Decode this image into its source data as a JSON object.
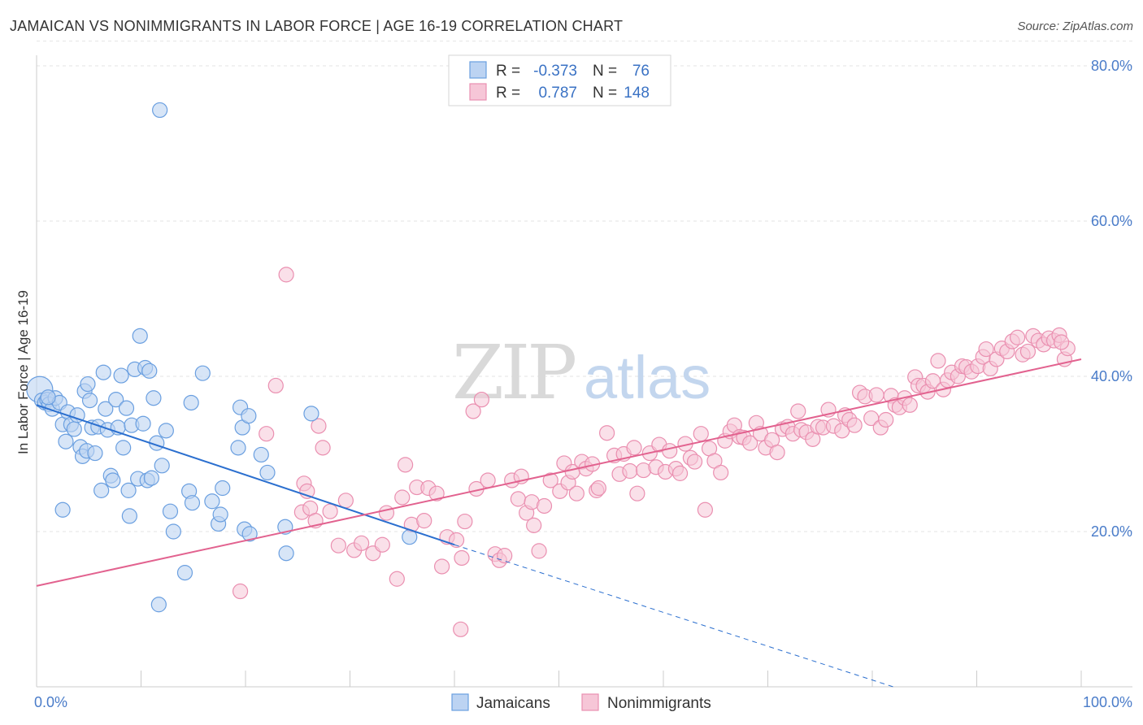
{
  "title": "JAMAICAN VS NONIMMIGRANTS IN LABOR FORCE | AGE 16-19 CORRELATION CHART",
  "source": "Source: ZipAtlas.com",
  "watermark": {
    "part1": "ZIP",
    "part2": "atlas"
  },
  "colors": {
    "blue": "#6a9fe0",
    "blue_fill": "#bcd3f2",
    "blue_line": "#2b6fcf",
    "pink": "#ea8fb0",
    "pink_fill": "#f6c6d7",
    "pink_line": "#e2628f",
    "tick_blue": "#4a7cc9"
  },
  "legend": {
    "r_label": "R =",
    "n_label": "N =",
    "rows": [
      {
        "r": "-0.373",
        "n": "76"
      },
      {
        "r": "0.787",
        "n": "148"
      }
    ]
  },
  "bottom_legend": [
    "Jamaicans",
    "Nonimmigrants"
  ],
  "chart_data": {
    "type": "scatter",
    "title": "JAMAICAN VS NONIMMIGRANTS IN LABOR FORCE | AGE 16-19 CORRELATION CHART",
    "xlabel": "",
    "ylabel": "In Labor Force | Age 16-19",
    "xlim": [
      0,
      100
    ],
    "ylim": [
      0,
      85
    ],
    "x_tick_labels": [
      "0.0%",
      "100.0%"
    ],
    "y_ticks": [
      20,
      40,
      60,
      80
    ],
    "y_tick_labels": [
      "20.0%",
      "40.0%",
      "60.0%",
      "80.0%"
    ],
    "grid": true,
    "legend_position": "top-center",
    "series": [
      {
        "name": "Jamaicans",
        "r": -0.373,
        "n": 76,
        "trend": {
          "x0": 0,
          "y0": 36.3,
          "x1": 40,
          "y1": 18.3,
          "dashed_to_x": 82
        },
        "points": [
          [
            0.3,
            38.3
          ],
          [
            0.5,
            36.9
          ],
          [
            0.8,
            36.6
          ],
          [
            1.0,
            37.0
          ],
          [
            1.2,
            36.4
          ],
          [
            1.5,
            35.8
          ],
          [
            1.8,
            37.2
          ],
          [
            2.2,
            36.6
          ],
          [
            2.5,
            33.8
          ],
          [
            2.8,
            31.6
          ],
          [
            3.0,
            35.4
          ],
          [
            3.3,
            33.8
          ],
          [
            3.6,
            33.2
          ],
          [
            3.9,
            35.0
          ],
          [
            4.2,
            30.9
          ],
          [
            4.4,
            29.7
          ],
          [
            4.6,
            38.1
          ],
          [
            4.8,
            30.4
          ],
          [
            5.1,
            36.9
          ],
          [
            5.3,
            33.4
          ],
          [
            5.6,
            30.1
          ],
          [
            5.9,
            33.5
          ],
          [
            6.2,
            25.3
          ],
          [
            6.4,
            40.5
          ],
          [
            6.6,
            35.8
          ],
          [
            6.8,
            33.1
          ],
          [
            7.1,
            27.2
          ],
          [
            7.3,
            26.6
          ],
          [
            7.6,
            37.0
          ],
          [
            7.8,
            33.4
          ],
          [
            8.1,
            40.1
          ],
          [
            8.3,
            30.8
          ],
          [
            8.6,
            35.9
          ],
          [
            8.8,
            25.3
          ],
          [
            8.9,
            22.0
          ],
          [
            9.1,
            33.7
          ],
          [
            9.4,
            40.9
          ],
          [
            9.7,
            26.8
          ],
          [
            9.9,
            45.2
          ],
          [
            10.2,
            33.9
          ],
          [
            10.4,
            41.1
          ],
          [
            10.6,
            26.6
          ],
          [
            10.8,
            40.7
          ],
          [
            11.0,
            26.9
          ],
          [
            11.2,
            37.2
          ],
          [
            11.5,
            31.4
          ],
          [
            11.7,
            10.6
          ],
          [
            12.0,
            28.5
          ],
          [
            12.4,
            33.0
          ],
          [
            12.8,
            22.6
          ],
          [
            13.1,
            20.0
          ],
          [
            14.2,
            14.7
          ],
          [
            14.6,
            25.2
          ],
          [
            14.8,
            36.6
          ],
          [
            14.9,
            23.7
          ],
          [
            15.9,
            40.4
          ],
          [
            16.8,
            23.9
          ],
          [
            17.4,
            21.0
          ],
          [
            17.6,
            22.2
          ],
          [
            17.8,
            25.6
          ],
          [
            19.3,
            30.8
          ],
          [
            19.5,
            36.0
          ],
          [
            19.7,
            33.4
          ],
          [
            19.9,
            20.3
          ],
          [
            20.3,
            34.9
          ],
          [
            20.4,
            19.7
          ],
          [
            21.5,
            29.9
          ],
          [
            22.1,
            27.6
          ],
          [
            23.8,
            20.6
          ],
          [
            23.9,
            17.2
          ],
          [
            26.3,
            35.2
          ],
          [
            35.7,
            19.3
          ],
          [
            11.8,
            74.3
          ],
          [
            4.9,
            39.0
          ],
          [
            2.5,
            22.8
          ],
          [
            1.1,
            37.3
          ]
        ]
      },
      {
        "name": "Nonimmigrants",
        "r": 0.787,
        "n": 148,
        "trend": {
          "x0": 0,
          "y0": 13.0,
          "x1": 100,
          "y1": 42.2
        },
        "points": [
          [
            19.5,
            12.3
          ],
          [
            22.0,
            32.6
          ],
          [
            22.9,
            38.8
          ],
          [
            23.9,
            53.1
          ],
          [
            25.4,
            22.5
          ],
          [
            25.6,
            26.2
          ],
          [
            25.9,
            25.2
          ],
          [
            26.2,
            23.0
          ],
          [
            26.7,
            21.4
          ],
          [
            27.0,
            33.6
          ],
          [
            27.4,
            30.8
          ],
          [
            28.1,
            22.6
          ],
          [
            28.9,
            18.2
          ],
          [
            29.6,
            24.0
          ],
          [
            30.4,
            17.6
          ],
          [
            31.1,
            18.5
          ],
          [
            32.2,
            17.2
          ],
          [
            33.1,
            18.3
          ],
          [
            33.5,
            22.4
          ],
          [
            34.5,
            13.9
          ],
          [
            35.0,
            24.4
          ],
          [
            35.3,
            28.6
          ],
          [
            35.9,
            20.9
          ],
          [
            36.4,
            25.7
          ],
          [
            37.1,
            21.4
          ],
          [
            37.5,
            25.6
          ],
          [
            38.3,
            24.9
          ],
          [
            38.8,
            15.5
          ],
          [
            39.3,
            19.3
          ],
          [
            40.2,
            18.9
          ],
          [
            40.7,
            16.6
          ],
          [
            41.0,
            21.3
          ],
          [
            40.6,
            7.4
          ],
          [
            41.8,
            35.5
          ],
          [
            42.1,
            25.5
          ],
          [
            42.6,
            37.0
          ],
          [
            43.2,
            26.6
          ],
          [
            43.9,
            17.1
          ],
          [
            44.3,
            16.3
          ],
          [
            44.8,
            16.9
          ],
          [
            45.5,
            26.6
          ],
          [
            46.1,
            24.2
          ],
          [
            46.4,
            27.1
          ],
          [
            46.9,
            22.4
          ],
          [
            47.4,
            23.8
          ],
          [
            47.6,
            20.8
          ],
          [
            48.1,
            17.5
          ],
          [
            48.6,
            23.3
          ],
          [
            49.2,
            26.6
          ],
          [
            50.1,
            25.2
          ],
          [
            50.5,
            28.8
          ],
          [
            50.9,
            26.3
          ],
          [
            51.3,
            27.7
          ],
          [
            51.7,
            24.9
          ],
          [
            52.2,
            29.0
          ],
          [
            52.6,
            28.1
          ],
          [
            53.2,
            28.7
          ],
          [
            53.6,
            25.3
          ],
          [
            53.8,
            25.6
          ],
          [
            54.6,
            32.7
          ],
          [
            55.3,
            29.8
          ],
          [
            55.8,
            27.4
          ],
          [
            56.2,
            30.0
          ],
          [
            56.8,
            27.8
          ],
          [
            57.2,
            30.8
          ],
          [
            57.5,
            24.9
          ],
          [
            58.1,
            27.9
          ],
          [
            58.7,
            30.1
          ],
          [
            59.3,
            28.3
          ],
          [
            59.6,
            31.2
          ],
          [
            60.2,
            27.7
          ],
          [
            60.6,
            30.4
          ],
          [
            61.2,
            28.1
          ],
          [
            61.6,
            27.5
          ],
          [
            62.1,
            31.3
          ],
          [
            62.6,
            29.5
          ],
          [
            63.0,
            29.0
          ],
          [
            63.6,
            32.6
          ],
          [
            64.0,
            22.8
          ],
          [
            64.4,
            30.7
          ],
          [
            64.9,
            29.1
          ],
          [
            65.5,
            27.6
          ],
          [
            65.9,
            31.7
          ],
          [
            66.4,
            32.9
          ],
          [
            66.8,
            33.7
          ],
          [
            67.3,
            32.2
          ],
          [
            67.7,
            32.1
          ],
          [
            68.3,
            31.4
          ],
          [
            68.9,
            34.0
          ],
          [
            69.3,
            32.6
          ],
          [
            69.8,
            30.8
          ],
          [
            70.4,
            31.8
          ],
          [
            70.9,
            30.2
          ],
          [
            71.4,
            33.2
          ],
          [
            71.9,
            33.5
          ],
          [
            72.4,
            32.6
          ],
          [
            72.9,
            35.5
          ],
          [
            73.2,
            33.1
          ],
          [
            73.7,
            32.8
          ],
          [
            74.3,
            31.9
          ],
          [
            74.8,
            33.5
          ],
          [
            75.3,
            33.4
          ],
          [
            75.8,
            35.7
          ],
          [
            76.3,
            33.6
          ],
          [
            77.1,
            33.0
          ],
          [
            77.4,
            35.0
          ],
          [
            77.8,
            34.4
          ],
          [
            78.3,
            33.7
          ],
          [
            78.8,
            37.9
          ],
          [
            79.3,
            37.4
          ],
          [
            79.9,
            34.6
          ],
          [
            80.4,
            37.6
          ],
          [
            80.8,
            33.4
          ],
          [
            81.3,
            34.4
          ],
          [
            81.8,
            37.5
          ],
          [
            82.2,
            36.3
          ],
          [
            82.6,
            36.0
          ],
          [
            83.1,
            37.2
          ],
          [
            83.6,
            36.3
          ],
          [
            84.1,
            39.9
          ],
          [
            84.4,
            38.8
          ],
          [
            84.9,
            38.8
          ],
          [
            85.3,
            38.0
          ],
          [
            85.8,
            39.4
          ],
          [
            86.3,
            42.0
          ],
          [
            86.8,
            38.3
          ],
          [
            87.2,
            39.5
          ],
          [
            87.6,
            40.5
          ],
          [
            88.2,
            40.0
          ],
          [
            88.6,
            41.3
          ],
          [
            89.0,
            41.2
          ],
          [
            89.5,
            40.6
          ],
          [
            90.1,
            41.3
          ],
          [
            90.6,
            42.5
          ],
          [
            90.9,
            43.5
          ],
          [
            91.3,
            41.0
          ],
          [
            91.9,
            42.2
          ],
          [
            92.4,
            43.6
          ],
          [
            92.9,
            43.2
          ],
          [
            93.4,
            44.5
          ],
          [
            93.9,
            45.0
          ],
          [
            94.4,
            42.8
          ],
          [
            94.9,
            43.2
          ],
          [
            95.4,
            45.2
          ],
          [
            95.9,
            44.6
          ],
          [
            96.4,
            44.1
          ],
          [
            96.9,
            44.9
          ],
          [
            97.4,
            44.6
          ],
          [
            97.9,
            45.3
          ],
          [
            98.4,
            42.2
          ],
          [
            98.7,
            43.6
          ],
          [
            98.1,
            44.4
          ]
        ]
      }
    ]
  }
}
